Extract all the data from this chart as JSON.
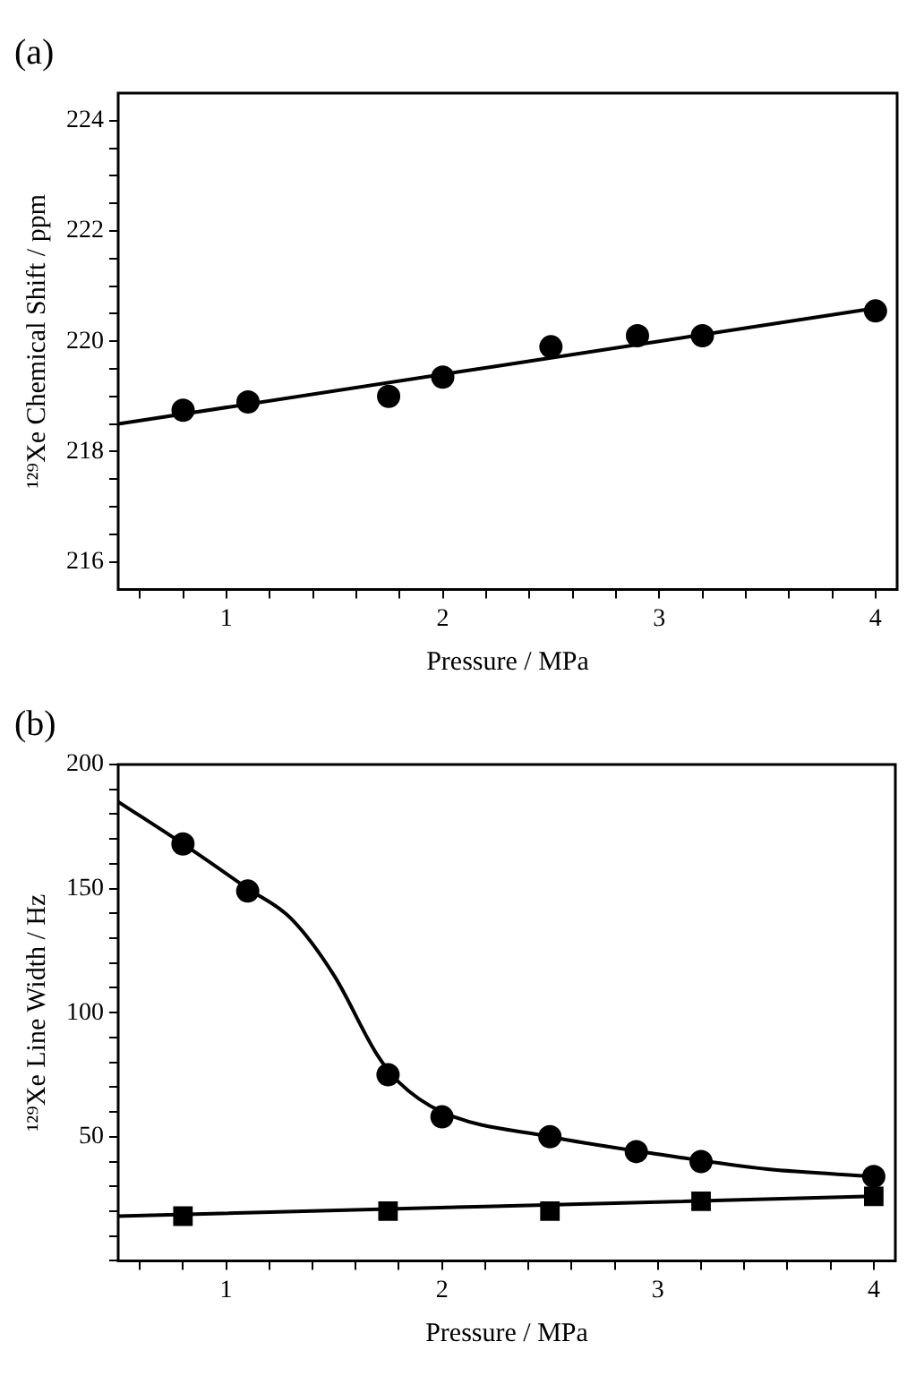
{
  "chart_data": [
    {
      "type": "scatter",
      "title": "(a)",
      "xlabel": "Pressure / MPa",
      "ylabel": "¹²⁹Xe Chemical Shift / ppm",
      "xlim": [
        0.5,
        4.1
      ],
      "ylim": [
        215.5,
        224.5
      ],
      "xticks": [
        {
          "value": 0.6,
          "label": null
        },
        {
          "value": 0.8,
          "label": null
        },
        1,
        {
          "value": 1.2,
          "label": null
        },
        {
          "value": 1.4,
          "label": null
        },
        {
          "value": 1.6,
          "label": null
        },
        {
          "value": 1.8,
          "label": null
        },
        2,
        {
          "value": 2.2,
          "label": null
        },
        {
          "value": 2.4,
          "label": null
        },
        {
          "value": 2.6,
          "label": null
        },
        {
          "value": 2.8,
          "label": null
        },
        3,
        {
          "value": 3.2,
          "label": null
        },
        {
          "value": 3.4,
          "label": null
        },
        {
          "value": 3.6,
          "label": null
        },
        {
          "value": 3.8,
          "label": null
        },
        4
      ],
      "yticks": [
        216,
        {
          "value": 216.5,
          "label": null
        },
        {
          "value": 217,
          "label": null
        },
        {
          "value": 217.5,
          "label": null
        },
        218,
        {
          "value": 218.5,
          "label": null
        },
        {
          "value": 219,
          "label": null
        },
        {
          "value": 219.5,
          "label": null
        },
        220,
        {
          "value": 220.5,
          "label": null
        },
        {
          "value": 221,
          "label": null
        },
        {
          "value": 221.5,
          "label": null
        },
        222,
        {
          "value": 222.5,
          "label": null
        },
        {
          "value": 223,
          "label": null
        },
        {
          "value": 223.5,
          "label": null
        },
        224
      ],
      "grid": false,
      "legend": false,
      "series": [
        {
          "type": "scatter",
          "marker": "circle",
          "color": "#000000",
          "x": [
            0.8,
            1.1,
            1.75,
            2.0,
            2.5,
            2.9,
            3.2,
            4.0
          ],
          "values": [
            218.75,
            218.9,
            219.0,
            219.35,
            219.9,
            220.1,
            220.1,
            220.55
          ]
        },
        {
          "type": "line",
          "marker": "none",
          "line_style": "solid",
          "color": "#000000",
          "x": [
            0.5,
            4.0
          ],
          "values": [
            218.5,
            220.6
          ]
        }
      ]
    },
    {
      "type": "scatter",
      "title": "(b)",
      "xlabel": "Pressure / MPa",
      "ylabel": "¹²⁹Xe Line Width / Hz",
      "xlim": [
        0.5,
        4.1
      ],
      "ylim": [
        0,
        200
      ],
      "xticks": [
        {
          "value": 0.6,
          "label": null
        },
        {
          "value": 0.8,
          "label": null
        },
        1,
        {
          "value": 1.2,
          "label": null
        },
        {
          "value": 1.4,
          "label": null
        },
        {
          "value": 1.6,
          "label": null
        },
        {
          "value": 1.8,
          "label": null
        },
        2,
        {
          "value": 2.2,
          "label": null
        },
        {
          "value": 2.4,
          "label": null
        },
        {
          "value": 2.6,
          "label": null
        },
        {
          "value": 2.8,
          "label": null
        },
        3,
        {
          "value": 3.2,
          "label": null
        },
        {
          "value": 3.4,
          "label": null
        },
        {
          "value": 3.6,
          "label": null
        },
        {
          "value": 3.8,
          "label": null
        },
        4
      ],
      "yticks": [
        {
          "value": 0,
          "label": null
        },
        {
          "value": 10,
          "label": null
        },
        {
          "value": 20,
          "label": null
        },
        {
          "value": 30,
          "label": null
        },
        {
          "value": 40,
          "label": null
        },
        50,
        {
          "value": 60,
          "label": null
        },
        {
          "value": 70,
          "label": null
        },
        {
          "value": 80,
          "label": null
        },
        {
          "value": 90,
          "label": null
        },
        100,
        {
          "value": 110,
          "label": null
        },
        {
          "value": 120,
          "label": null
        },
        {
          "value": 130,
          "label": null
        },
        {
          "value": 140,
          "label": null
        },
        150,
        {
          "value": 160,
          "label": null
        },
        {
          "value": 170,
          "label": null
        },
        {
          "value": 180,
          "label": null
        },
        {
          "value": 190,
          "label": null
        },
        200
      ],
      "grid": false,
      "legend": false,
      "series": [
        {
          "type": "scatter",
          "marker": "circle",
          "color": "#000000",
          "x": [
            0.8,
            1.1,
            1.75,
            2.0,
            2.5,
            2.9,
            3.2,
            4.0
          ],
          "values": [
            168,
            149,
            75,
            58,
            50,
            44,
            40,
            34
          ]
        },
        {
          "type": "line",
          "marker": "none",
          "line_style": "solid",
          "color": "#000000",
          "x": [
            0.5,
            0.8,
            1.1,
            1.3,
            1.5,
            1.7,
            1.8,
            2.0,
            2.5,
            3.0,
            3.5,
            4.0
          ],
          "values": [
            185,
            168,
            150,
            138,
            115,
            83,
            72,
            60,
            50,
            43,
            37,
            34
          ]
        },
        {
          "type": "scatter",
          "marker": "square",
          "color": "#000000",
          "x": [
            0.8,
            1.75,
            2.5,
            3.2,
            4.0
          ],
          "values": [
            18,
            20,
            20,
            24,
            26
          ]
        },
        {
          "type": "line",
          "marker": "none",
          "line_style": "solid",
          "color": "#000000",
          "x": [
            0.5,
            4.0
          ],
          "values": [
            18,
            26
          ]
        }
      ]
    }
  ]
}
